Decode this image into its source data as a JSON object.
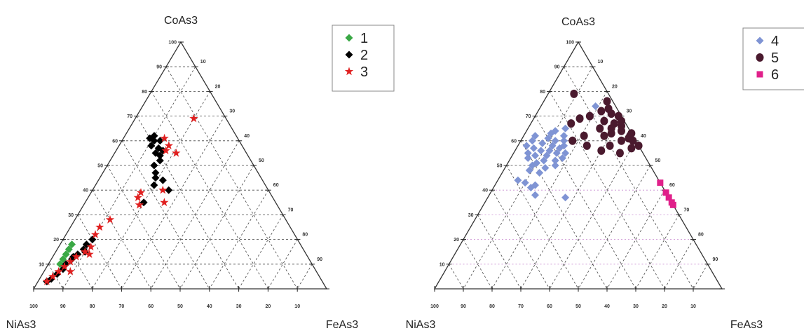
{
  "chart_data": [
    {
      "type": "scatter",
      "subtype": "ternary",
      "vertices": {
        "top": "CoAs3",
        "left": "NiAs3",
        "right": "FeAs3"
      },
      "ticks": [
        "10",
        "20",
        "30",
        "40",
        "50",
        "60",
        "70",
        "80",
        "90",
        "100"
      ],
      "bottom_ticks": [
        "100",
        "90",
        "80",
        "70",
        "60",
        "50",
        "40",
        "30",
        "20",
        "10"
      ],
      "legend_position": "top-right",
      "series": [
        {
          "name": "1",
          "marker": "diamond",
          "color": "#3aa845",
          "points": [
            [
              12,
              84,
              4
            ],
            [
              14,
              82,
              4
            ],
            [
              16,
              80,
              4
            ],
            [
              18,
              78,
              4
            ],
            [
              10,
              86,
              4
            ]
          ]
        },
        {
          "name": "2",
          "marker": "diamond",
          "color": "#000000",
          "points": [
            [
              61,
              30,
              9
            ],
            [
              62,
              28,
              10
            ],
            [
              60,
              29,
              11
            ],
            [
              58,
              31,
              11
            ],
            [
              57,
              29,
              14
            ],
            [
              55,
              31,
              14
            ],
            [
              56,
              28,
              16
            ],
            [
              54,
              30,
              16
            ],
            [
              60,
              27,
              13
            ],
            [
              52,
              31,
              17
            ],
            [
              50,
              34,
              16
            ],
            [
              47,
              35,
              18
            ],
            [
              45,
              36,
              19
            ],
            [
              44,
              34,
              22
            ],
            [
              40,
              34,
              26
            ],
            [
              42,
              38,
              20
            ],
            [
              35,
              45,
              20
            ],
            [
              20,
              70,
              10
            ],
            [
              18,
              73,
              9
            ],
            [
              16,
              75,
              9
            ],
            [
              14,
              78,
              8
            ],
            [
              12,
              81,
              7
            ],
            [
              10,
              84,
              6
            ],
            [
              8,
              86,
              6
            ],
            [
              6,
              89,
              5
            ],
            [
              4,
              92,
              4
            ],
            [
              3,
              94,
              3
            ],
            [
              15,
              75,
              10
            ],
            [
              13,
              80,
              7
            ]
          ]
        },
        {
          "name": "3",
          "marker": "star",
          "color": "#e02020",
          "points": [
            [
              69,
              11,
              20
            ],
            [
              61,
              25,
              14
            ],
            [
              56,
              27,
              17
            ],
            [
              58,
              25,
              17
            ],
            [
              55,
              24,
              21
            ],
            [
              39,
              44,
              17
            ],
            [
              37,
              46,
              17
            ],
            [
              34,
              47,
              19
            ],
            [
              40,
              36,
              24
            ],
            [
              35,
              38,
              27
            ],
            [
              28,
              60,
              12
            ],
            [
              25,
              65,
              10
            ],
            [
              22,
              68,
              10
            ],
            [
              17,
              72,
              11
            ],
            [
              15,
              75,
              10
            ],
            [
              13,
              79,
              8
            ],
            [
              11,
              82,
              7
            ],
            [
              9,
              85,
              6
            ],
            [
              7,
              88,
              5
            ],
            [
              5,
              91,
              4
            ],
            [
              3,
              94,
              3
            ],
            [
              14,
              74,
              12
            ],
            [
              7,
              84,
              9
            ]
          ]
        }
      ]
    },
    {
      "type": "scatter",
      "subtype": "ternary",
      "vertices": {
        "top": "CoAs3",
        "left": "NiAs3",
        "right": "FeAs3"
      },
      "ticks": [
        "10",
        "20",
        "30",
        "40",
        "50",
        "60",
        "70",
        "80",
        "90",
        "100"
      ],
      "bottom_ticks": [
        "100",
        "90",
        "80",
        "70",
        "60",
        "50",
        "40",
        "30",
        "20",
        "10"
      ],
      "legend_position": "top-right",
      "series": [
        {
          "name": "4",
          "marker": "diamond",
          "color": "#7f94d4",
          "points": [
            [
              62,
              34,
              4
            ],
            [
              60,
              36,
              4
            ],
            [
              58,
              39,
              3
            ],
            [
              57,
              37,
              6
            ],
            [
              55,
              40,
              5
            ],
            [
              54,
              38,
              8
            ],
            [
              53,
              41,
              6
            ],
            [
              56,
              35,
              9
            ],
            [
              59,
              33,
              8
            ],
            [
              61,
              30,
              9
            ],
            [
              63,
              28,
              9
            ],
            [
              64,
              26,
              10
            ],
            [
              60,
              28,
              12
            ],
            [
              58,
              30,
              12
            ],
            [
              56,
              32,
              12
            ],
            [
              54,
              34,
              12
            ],
            [
              52,
              36,
              12
            ],
            [
              51,
              39,
              10
            ],
            [
              50,
              41,
              9
            ],
            [
              52,
              32,
              16
            ],
            [
              55,
              30,
              15
            ],
            [
              57,
              28,
              15
            ],
            [
              60,
              25,
              15
            ],
            [
              62,
              24,
              14
            ],
            [
              65,
              22,
              13
            ],
            [
              58,
              26,
              16
            ],
            [
              53,
              29,
              18
            ],
            [
              50,
              33,
              17
            ],
            [
              49,
              37,
              14
            ],
            [
              48,
              43,
              9
            ],
            [
              47,
              40,
              13
            ],
            [
              55,
              27,
              18
            ],
            [
              44,
              49,
              7
            ],
            [
              43,
              47,
              10
            ],
            [
              42,
              44,
              14
            ],
            [
              41,
              46,
              13
            ],
            [
              38,
              46,
              16
            ],
            [
              37,
              36,
              27
            ],
            [
              74,
              7,
              19
            ]
          ]
        },
        {
          "name": "5",
          "marker": "circle",
          "color": "#4a1a2e",
          "points": [
            [
              79,
              12,
              9
            ],
            [
              76,
              2,
              22
            ],
            [
              73,
              3,
              24
            ],
            [
              72,
              6,
              22
            ],
            [
              71,
              3,
              26
            ],
            [
              70,
              1,
              29
            ],
            [
              68,
              1,
              31
            ],
            [
              67,
              4,
              29
            ],
            [
              66,
              2,
              32
            ],
            [
              64,
              3,
              33
            ],
            [
              63,
              0,
              37
            ],
            [
              62,
              1,
              37
            ],
            [
              61,
              2,
              37
            ],
            [
              60,
              1,
              39
            ],
            [
              58,
              0,
              42
            ],
            [
              65,
              6,
              29
            ],
            [
              68,
              7,
              25
            ],
            [
              63,
              7,
              30
            ],
            [
              60,
              5,
              35
            ],
            [
              57,
              3,
              40
            ],
            [
              62,
              10,
              28
            ],
            [
              58,
              10,
              32
            ],
            [
              55,
              8,
              37
            ],
            [
              56,
              14,
              30
            ],
            [
              67,
              19,
              14
            ],
            [
              69,
              15,
              16
            ],
            [
              62,
              17,
              21
            ],
            [
              60,
              22,
              18
            ],
            [
              65,
              10,
              25
            ],
            [
              70,
              11,
              19
            ],
            [
              58,
              18,
              24
            ]
          ]
        },
        {
          "name": "6",
          "marker": "square",
          "color": "#e0208a",
          "points": [
            [
              43,
              0,
              57
            ],
            [
              39,
              0,
              61
            ],
            [
              37,
              0,
              63
            ],
            [
              35,
              0,
              65
            ],
            [
              34,
              0,
              66
            ]
          ]
        }
      ]
    }
  ]
}
